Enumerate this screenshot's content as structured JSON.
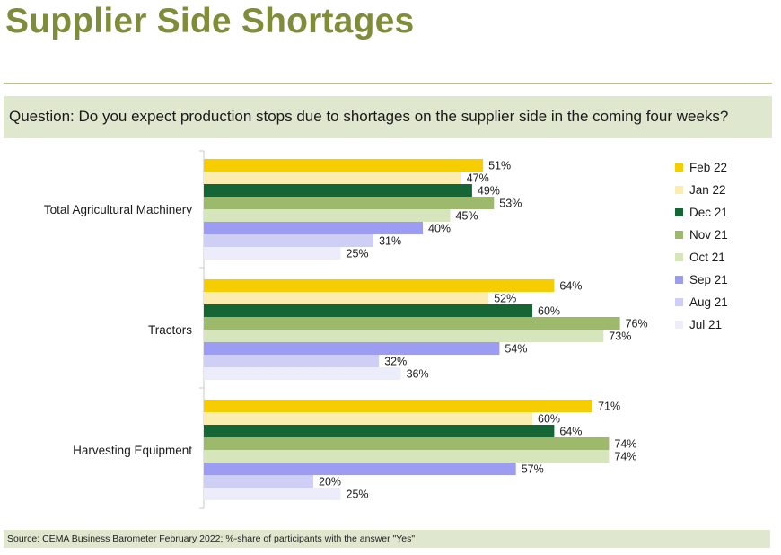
{
  "page": {
    "title": "Supplier Side Shortages",
    "question": "Question: Do you expect production stops due to shortages on the supplier side in the coming four weeks?",
    "source": "Source: CEMA Business Barometer February 2022; %-share of participants with the answer \"Yes\""
  },
  "chart_data": {
    "type": "bar",
    "orientation": "horizontal",
    "title": "",
    "xlabel": "",
    "ylabel": "",
    "xlim": [
      0,
      100
    ],
    "value_suffix": "%",
    "legend_position": "right",
    "categories": [
      "Total Agricultural Machinery",
      "Tractors",
      "Harvesting Equipment"
    ],
    "series": [
      {
        "name": "Feb 22",
        "color": "#f5cd00",
        "values": [
          51,
          64,
          71
        ]
      },
      {
        "name": "Jan 22",
        "color": "#fbedb0",
        "values": [
          47,
          52,
          60
        ]
      },
      {
        "name": "Dec 21",
        "color": "#166534",
        "values": [
          49,
          60,
          64
        ]
      },
      {
        "name": "Nov 21",
        "color": "#9db96c",
        "values": [
          53,
          76,
          74
        ]
      },
      {
        "name": "Oct 21",
        "color": "#d7e5bc",
        "values": [
          45,
          73,
          74
        ]
      },
      {
        "name": "Sep 21",
        "color": "#9c9cf3",
        "values": [
          40,
          54,
          57
        ]
      },
      {
        "name": "Aug 21",
        "color": "#cfcff6",
        "values": [
          31,
          32,
          20
        ]
      },
      {
        "name": "Jul 21",
        "color": "#ececfa",
        "values": [
          25,
          36,
          25
        ]
      }
    ]
  }
}
